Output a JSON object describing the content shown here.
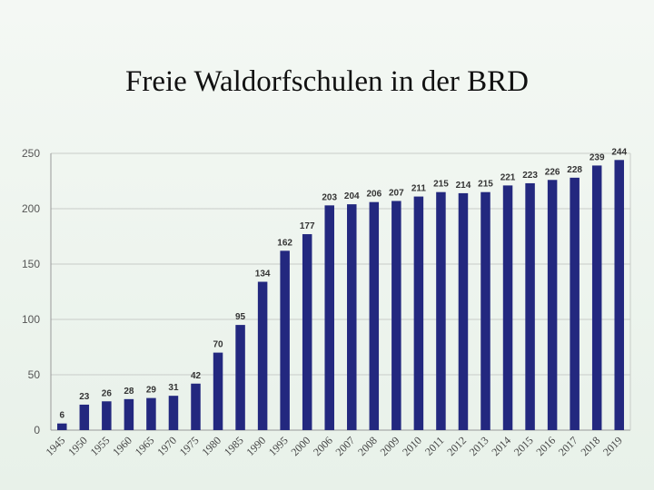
{
  "title": "Freie Waldorfschulen in der BRD",
  "colors": {
    "bar": "#23287f",
    "grid": "#c8ccc8",
    "axis": "#999999"
  },
  "chart_data": {
    "type": "bar",
    "title": "Freie Waldorfschulen in der BRD",
    "xlabel": "",
    "ylabel": "",
    "categories": [
      "1945",
      "1950",
      "1955",
      "1960",
      "1965",
      "1970",
      "1975",
      "1980",
      "1985",
      "1990",
      "1995",
      "2000",
      "2006",
      "2007",
      "2008",
      "2009",
      "2010",
      "2011",
      "2012",
      "2013",
      "2014",
      "2015",
      "2016",
      "2017",
      "2018",
      "2019"
    ],
    "values": [
      6,
      23,
      26,
      28,
      29,
      31,
      42,
      70,
      95,
      134,
      162,
      177,
      203,
      204,
      206,
      207,
      211,
      215,
      214,
      215,
      221,
      223,
      226,
      228,
      239,
      244
    ],
    "ylim": [
      0,
      250
    ],
    "yticks": [
      0,
      50,
      100,
      150,
      200,
      250
    ],
    "grid": true,
    "legend": "none"
  }
}
